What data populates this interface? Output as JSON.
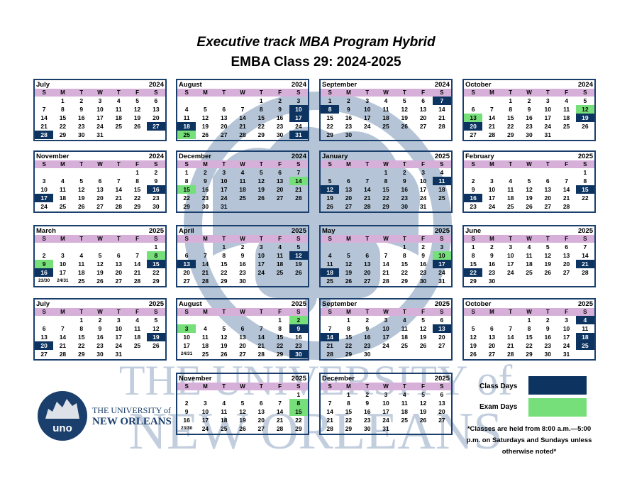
{
  "titles": {
    "line1": "Executive track MBA Program Hybrid",
    "line2": "EMBA Class 29: 2024-2025"
  },
  "dow": [
    "S",
    "M",
    "T",
    "W",
    "T",
    "F",
    "S"
  ],
  "colors": {
    "class_day": "#0d3461",
    "exam_day": "#76df7a",
    "weekday_header": "#d6b0d9",
    "border": "#1b3f6d"
  },
  "months": [
    {
      "name": "July",
      "year": "2024",
      "start": 1,
      "days": 31,
      "class": [
        27,
        28
      ],
      "exam": [],
      "overflow": []
    },
    {
      "name": "August",
      "year": "2024",
      "start": 4,
      "days": 31,
      "class": [
        10,
        17,
        18,
        31
      ],
      "exam": [
        25
      ],
      "overflow": []
    },
    {
      "name": "September",
      "year": "2024",
      "start": 0,
      "days": 30,
      "class": [
        7,
        8
      ],
      "exam": [],
      "overflow": []
    },
    {
      "name": "October",
      "year": "2024",
      "start": 2,
      "days": 31,
      "class": [
        19,
        20
      ],
      "exam": [
        12,
        13
      ],
      "overflow": []
    },
    {
      "name": "November",
      "year": "2024",
      "start": 5,
      "days": 30,
      "class": [
        16,
        17
      ],
      "exam": [],
      "overflow": []
    },
    {
      "name": "December",
      "year": "2024",
      "start": 0,
      "days": 31,
      "class": [],
      "exam": [
        14,
        15
      ],
      "overflow": []
    },
    {
      "name": "January",
      "year": "2025",
      "start": 3,
      "days": 31,
      "class": [
        11,
        12
      ],
      "exam": [],
      "overflow": []
    },
    {
      "name": "February",
      "year": "2025",
      "start": 6,
      "days": 28,
      "class": [
        15,
        16
      ],
      "exam": [],
      "overflow": []
    },
    {
      "name": "March",
      "year": "2025",
      "start": 6,
      "days": 31,
      "class": [
        15,
        16
      ],
      "exam": [
        8,
        9
      ],
      "overflow": [
        "23/30",
        "24/31"
      ]
    },
    {
      "name": "April",
      "year": "2025",
      "start": 2,
      "days": 30,
      "class": [
        12,
        13
      ],
      "exam": [],
      "overflow": []
    },
    {
      "name": "May",
      "year": "2025",
      "start": 4,
      "days": 31,
      "class": [
        17,
        18
      ],
      "exam": [
        10
      ],
      "overflow": []
    },
    {
      "name": "June",
      "year": "2025",
      "start": 0,
      "days": 30,
      "class": [
        21,
        22
      ],
      "exam": [],
      "overflow": []
    },
    {
      "name": "July",
      "year": "2025",
      "start": 2,
      "days": 31,
      "class": [
        19,
        20
      ],
      "exam": [],
      "overflow": []
    },
    {
      "name": "August",
      "year": "2025",
      "start": 5,
      "days": 31,
      "class": [
        9,
        30
      ],
      "exam": [
        2,
        3
      ],
      "overflow": [
        "24/31"
      ]
    },
    {
      "name": "September",
      "year": "2025",
      "start": 1,
      "days": 30,
      "class": [
        13,
        14
      ],
      "exam": [],
      "overflow": []
    },
    {
      "name": "October",
      "year": "2025",
      "start": 3,
      "days": 31,
      "class": [
        4,
        18,
        25
      ],
      "exam": [],
      "overflow": []
    },
    {
      "name": "November",
      "year": "2025",
      "start": 6,
      "days": 30,
      "class": [],
      "exam": [
        8,
        15
      ],
      "overflow": [
        "23/30"
      ]
    },
    {
      "name": "December",
      "year": "2025",
      "start": 1,
      "days": 31,
      "class": [],
      "exam": [],
      "overflow": []
    }
  ],
  "legend": {
    "class_label": "Class Days",
    "exam_label": "Exam Days",
    "note": "*Classes are held from 8:00 a.m.—5:00 p.m. on Saturdays and Sundays unless otherwise noted*"
  },
  "logo": {
    "line1": "THE UNIVERSITY of",
    "line2": "NEW ORLEANS",
    "mark": "uno"
  },
  "watermark": {
    "line1": "THE UNIVERSITY of",
    "line2": "NEW ORLEANS"
  }
}
